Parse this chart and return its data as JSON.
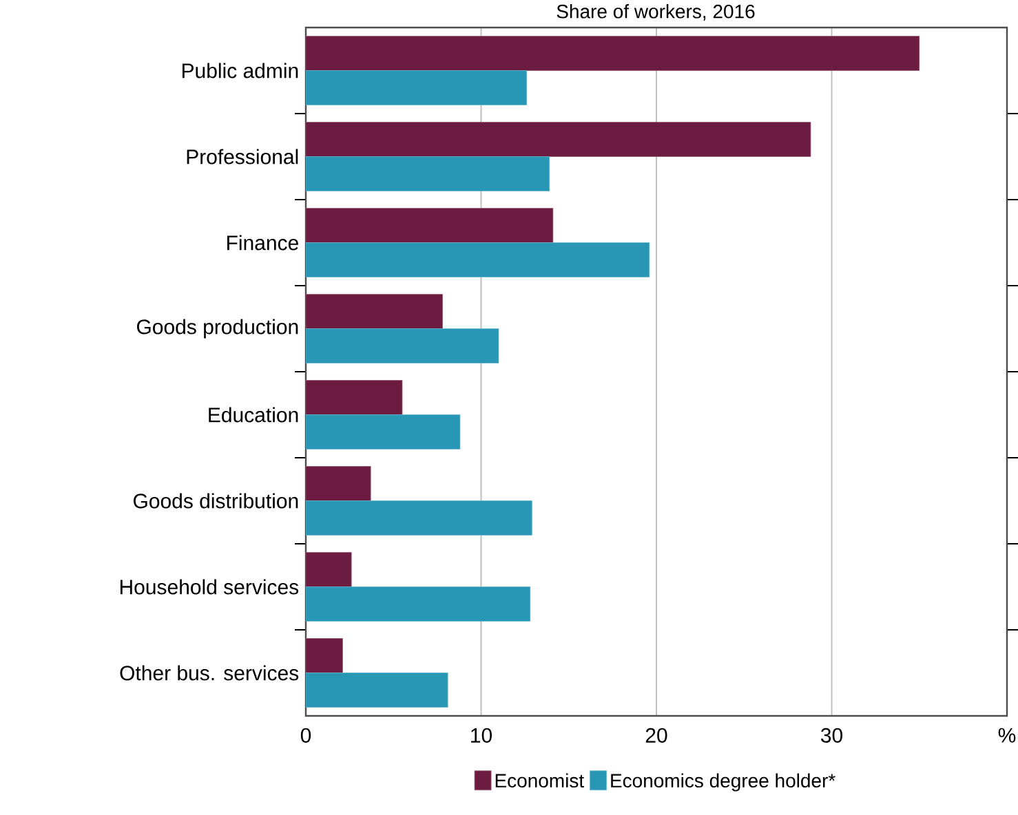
{
  "chart_data": {
    "type": "bar",
    "orientation": "horizontal",
    "title": "Share of workers, 2016",
    "categories": [
      "Public admin",
      "Professional",
      "Finance",
      "Goods production",
      "Education",
      "Goods distribution",
      "Household services",
      "Other bus. services"
    ],
    "series": [
      {
        "name": "Economist",
        "color": "#6b1c40",
        "values": [
          35.0,
          28.8,
          14.1,
          7.8,
          5.5,
          3.7,
          2.6,
          2.1
        ]
      },
      {
        "name": "Economics degree holder*",
        "color": "#2896b5",
        "values": [
          12.6,
          13.9,
          19.6,
          11.0,
          8.8,
          12.9,
          12.8,
          8.1
        ]
      }
    ],
    "xlim": [
      0,
      40
    ],
    "xticks": [
      0,
      10,
      20,
      30,
      {
        "value": 40,
        "label": "%"
      }
    ],
    "grid": "x",
    "legend": "bottom"
  }
}
